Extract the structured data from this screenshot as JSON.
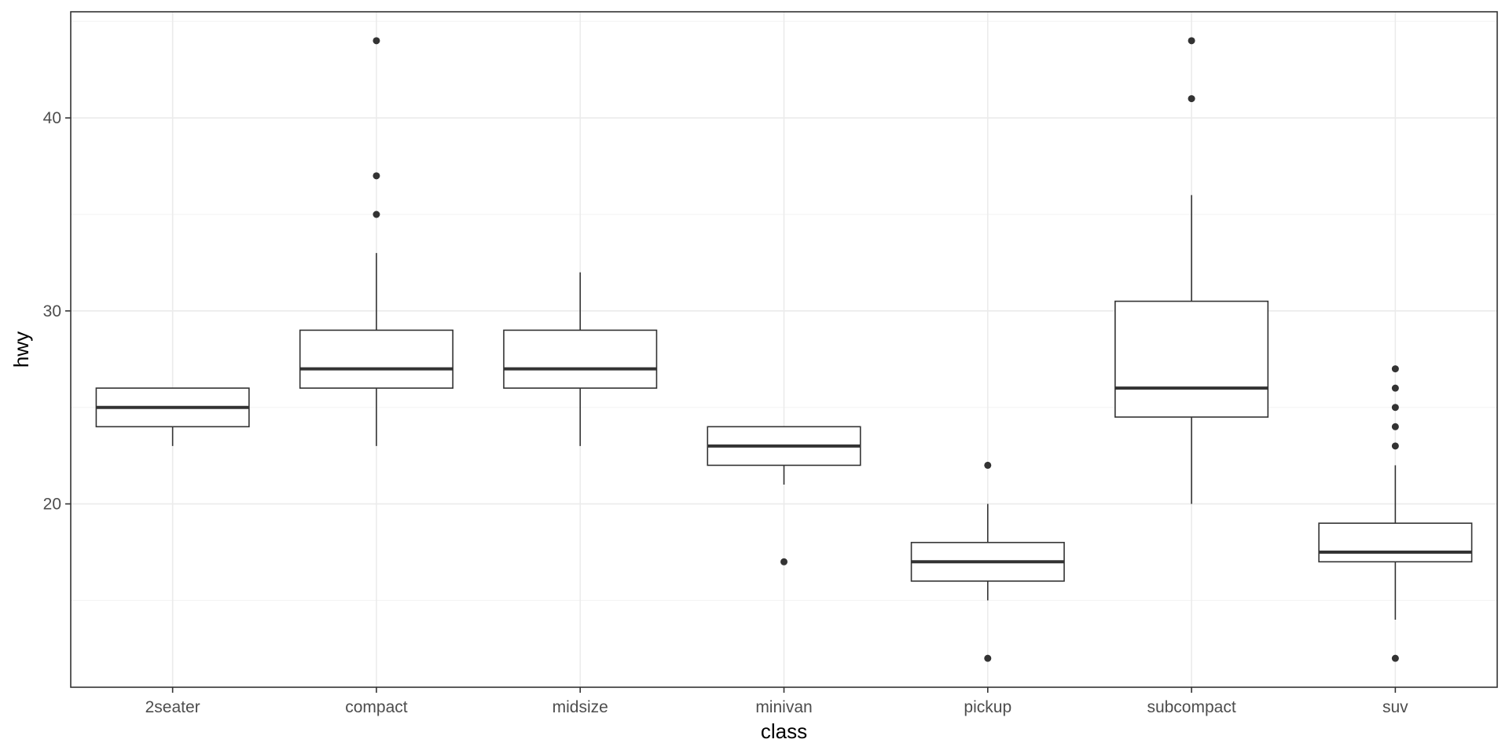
{
  "chart_data": {
    "type": "boxplot",
    "title": "",
    "xlabel": "class",
    "ylabel": "hwy",
    "ylim": [
      10.5,
      45.5
    ],
    "y_ticks": [
      20,
      30,
      40
    ],
    "y_tick_labels": [
      "20",
      "30",
      "40"
    ],
    "y_minor_ticks": [
      15,
      25,
      35,
      45
    ],
    "grid": true,
    "legend": "none",
    "categories": [
      "2seater",
      "compact",
      "midsize",
      "minivan",
      "pickup",
      "subcompact",
      "suv"
    ],
    "boxes": [
      {
        "category": "2seater",
        "lower_whisker": 23,
        "q1": 24,
        "median": 25,
        "q3": 26,
        "upper_whisker": 26,
        "outliers": []
      },
      {
        "category": "compact",
        "lower_whisker": 23,
        "q1": 26,
        "median": 27,
        "q3": 29,
        "upper_whisker": 33,
        "outliers": [
          35,
          37,
          44
        ]
      },
      {
        "category": "midsize",
        "lower_whisker": 23,
        "q1": 26,
        "median": 27,
        "q3": 29,
        "upper_whisker": 32,
        "outliers": []
      },
      {
        "category": "minivan",
        "lower_whisker": 21,
        "q1": 22,
        "median": 23,
        "q3": 24,
        "upper_whisker": 24,
        "outliers": [
          17
        ]
      },
      {
        "category": "pickup",
        "lower_whisker": 15,
        "q1": 16,
        "median": 17,
        "q3": 18,
        "upper_whisker": 20,
        "outliers": [
          12,
          22
        ]
      },
      {
        "category": "subcompact",
        "lower_whisker": 20,
        "q1": 24.5,
        "median": 26,
        "q3": 30.5,
        "upper_whisker": 36,
        "outliers": [
          41,
          44
        ]
      },
      {
        "category": "suv",
        "lower_whisker": 14,
        "q1": 17,
        "median": 17.5,
        "q3": 19,
        "upper_whisker": 22,
        "outliers": [
          12,
          23,
          24,
          25,
          26,
          27
        ]
      }
    ],
    "colors": {
      "box_line": "#333333",
      "box_fill": "#ffffff",
      "grid": "#ebebeb",
      "panel_border": "#333333",
      "tick_text": "#4d4d4d"
    }
  }
}
